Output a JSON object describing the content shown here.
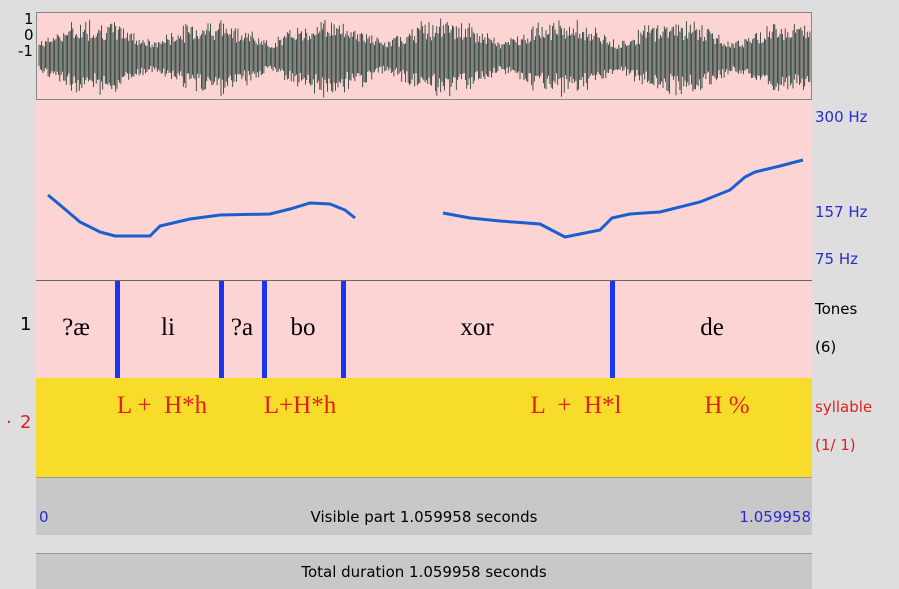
{
  "waveform": {
    "axis": [
      "1",
      "0",
      "-1"
    ]
  },
  "pitch": {
    "axis": [
      "300 Hz",
      "157 Hz",
      "75 Hz"
    ]
  },
  "tiers": [
    {
      "number": "1",
      "name": "Tones",
      "count": "(6)",
      "labels": [
        "?æ",
        "li",
        "?a",
        "bo",
        "xor",
        "de"
      ]
    },
    {
      "number": "2",
      "marker": "·",
      "name": "syllable",
      "count": "(1/ 1)",
      "labels": [
        "L +  H*h",
        "L+H*h",
        "L  +  H*l",
        "H %"
      ]
    }
  ],
  "visible": {
    "start": "0",
    "text": "Visible part 1.059958 seconds",
    "end": "1.059958"
  },
  "total": {
    "text": "Total duration 1.059958 seconds"
  }
}
